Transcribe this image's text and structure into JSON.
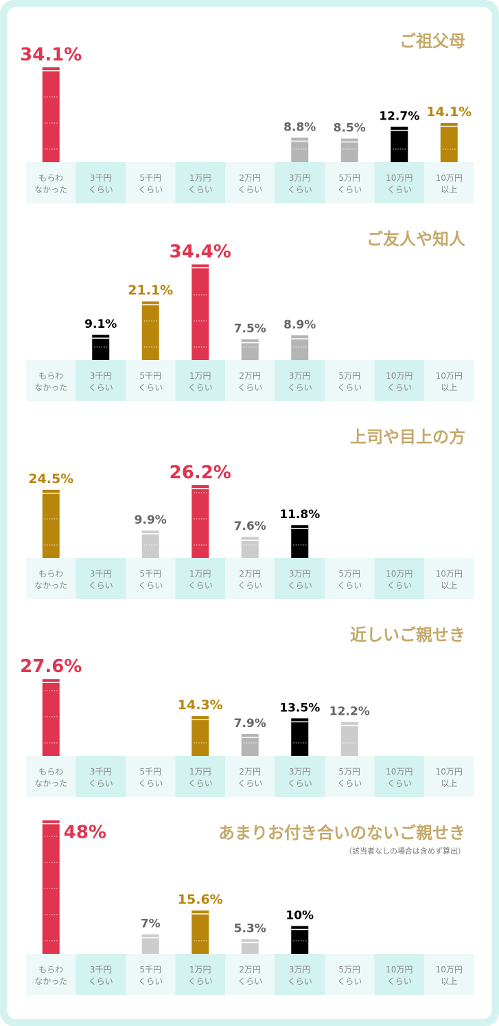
{
  "colors": {
    "top": "#e0344f",
    "gold": "#b8860b",
    "black": "#000000",
    "gray": "#b5b5b5",
    "lightgray": "#cccccc",
    "title": "#c5a96a",
    "cell_dark": "#d3f3f0",
    "cell_light": "#ecf9f8"
  },
  "chart_data": [
    {
      "type": "bar",
      "title": "ご祖父母",
      "categories": [
        [
          "もらわ",
          "なかった"
        ],
        [
          "3千円",
          "くらい"
        ],
        [
          "5千円",
          "くらい"
        ],
        [
          "1万円",
          "くらい"
        ],
        [
          "2万円",
          "くらい"
        ],
        [
          "3万円",
          "くらい"
        ],
        [
          "5万円",
          "くらい"
        ],
        [
          "10万円",
          "くらい"
        ],
        [
          "10万円",
          "以上"
        ]
      ],
      "values": [
        34.1,
        null,
        null,
        null,
        null,
        8.8,
        8.5,
        12.7,
        14.1
      ],
      "labels": [
        "34.1%",
        "",
        "",
        "",
        "",
        "8.8%",
        "8.5%",
        "12.7%",
        "14.1%"
      ],
      "colors": [
        "top",
        null,
        null,
        null,
        null,
        "gray",
        "gray",
        "black",
        "gold"
      ],
      "ylim": [
        0,
        48
      ]
    },
    {
      "type": "bar",
      "title": "ご友人や知人",
      "categories": [
        [
          "もらわ",
          "なかった"
        ],
        [
          "3千円",
          "くらい"
        ],
        [
          "5千円",
          "くらい"
        ],
        [
          "1万円",
          "くらい"
        ],
        [
          "2万円",
          "くらい"
        ],
        [
          "3万円",
          "くらい"
        ],
        [
          "5万円",
          "くらい"
        ],
        [
          "10万円",
          "くらい"
        ],
        [
          "10万円",
          "以上"
        ]
      ],
      "values": [
        null,
        9.1,
        21.1,
        34.4,
        7.5,
        8.9,
        null,
        null,
        null
      ],
      "labels": [
        "",
        "9.1%",
        "21.1%",
        "34.4%",
        "7.5%",
        "8.9%",
        "",
        "",
        ""
      ],
      "colors": [
        null,
        "black",
        "gold",
        "top",
        "gray",
        "gray",
        null,
        null,
        null
      ],
      "ylim": [
        0,
        48
      ]
    },
    {
      "type": "bar",
      "title": "上司や目上の方",
      "categories": [
        [
          "もらわ",
          "なかった"
        ],
        [
          "3千円",
          "くらい"
        ],
        [
          "5千円",
          "くらい"
        ],
        [
          "1万円",
          "くらい"
        ],
        [
          "2万円",
          "くらい"
        ],
        [
          "3万円",
          "くらい"
        ],
        [
          "5万円",
          "くらい"
        ],
        [
          "10万円",
          "くらい"
        ],
        [
          "10万円",
          "以上"
        ]
      ],
      "values": [
        24.5,
        null,
        9.9,
        26.2,
        7.6,
        11.8,
        null,
        null,
        null
      ],
      "labels": [
        "24.5%",
        "",
        "9.9%",
        "26.2%",
        "7.6%",
        "11.8%",
        "",
        "",
        ""
      ],
      "colors": [
        "gold",
        null,
        "lightgray",
        "top",
        "lightgray",
        "black",
        null,
        null,
        null
      ],
      "ylim": [
        0,
        48
      ]
    },
    {
      "type": "bar",
      "title": "近しいご親せき",
      "categories": [
        [
          "もらわ",
          "なかった"
        ],
        [
          "3千円",
          "くらい"
        ],
        [
          "5千円",
          "くらい"
        ],
        [
          "1万円",
          "くらい"
        ],
        [
          "2万円",
          "くらい"
        ],
        [
          "3万円",
          "くらい"
        ],
        [
          "5万円",
          "くらい"
        ],
        [
          "10万円",
          "くらい"
        ],
        [
          "10万円",
          "以上"
        ]
      ],
      "values": [
        27.6,
        null,
        null,
        14.3,
        7.9,
        13.5,
        12.2,
        null,
        null
      ],
      "labels": [
        "27.6%",
        "",
        "",
        "14.3%",
        "7.9%",
        "13.5%",
        "12.2%",
        "",
        ""
      ],
      "colors": [
        "top",
        null,
        null,
        "gold",
        "gray",
        "black",
        "lightgray",
        null,
        null
      ],
      "ylim": [
        0,
        48
      ]
    },
    {
      "type": "bar",
      "title": "あまりお付き合いのないご親せき",
      "note": "（該当者なしの場合は含めず算出）",
      "categories": [
        [
          "もらわ",
          "なかった"
        ],
        [
          "3千円",
          "くらい"
        ],
        [
          "5千円",
          "くらい"
        ],
        [
          "1万円",
          "くらい"
        ],
        [
          "2万円",
          "くらい"
        ],
        [
          "3万円",
          "くらい"
        ],
        [
          "5万円",
          "くらい"
        ],
        [
          "10万円",
          "くらい"
        ],
        [
          "10万円",
          "以上"
        ]
      ],
      "values": [
        48,
        null,
        7,
        15.6,
        5.3,
        10,
        null,
        null,
        null
      ],
      "labels": [
        "48%",
        "",
        "7%",
        "15.6%",
        "5.3%",
        "10%",
        "",
        "",
        ""
      ],
      "colors": [
        "top",
        null,
        "lightgray",
        "gold",
        "lightgray",
        "black",
        null,
        null,
        null
      ],
      "ylim": [
        0,
        48
      ]
    }
  ]
}
